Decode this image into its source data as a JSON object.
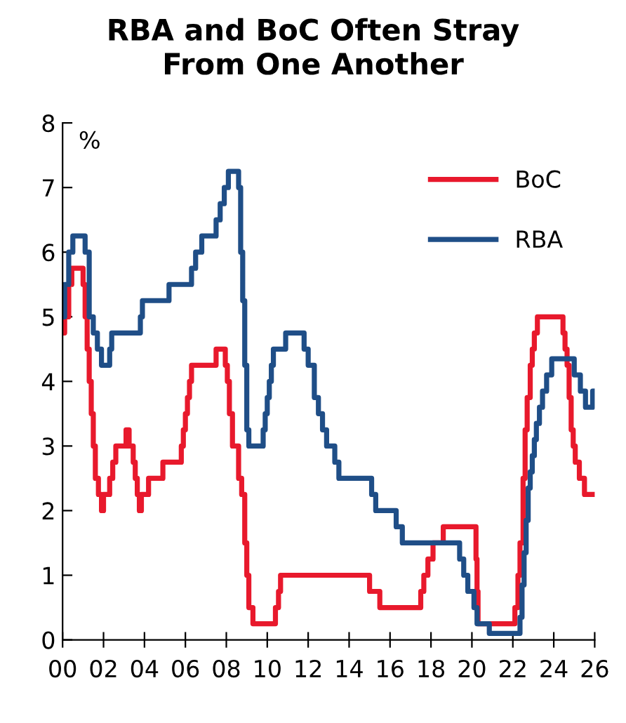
{
  "chart_data": {
    "type": "step",
    "title": "RBA and BoC Often Stray\nFrom One Another",
    "ylabel": "%",
    "xlim": [
      0,
      26
    ],
    "xticks": [
      {
        "value": 0,
        "label": "00"
      },
      {
        "value": 2,
        "label": "02"
      },
      {
        "value": 4,
        "label": "04"
      },
      {
        "value": 6,
        "label": "06"
      },
      {
        "value": 8,
        "label": "08"
      },
      {
        "value": 10,
        "label": "10"
      },
      {
        "value": 12,
        "label": "12"
      },
      {
        "value": 14,
        "label": "14"
      },
      {
        "value": 16,
        "label": "16"
      },
      {
        "value": 18,
        "label": "18"
      },
      {
        "value": 20,
        "label": "20"
      },
      {
        "value": 22,
        "label": "22"
      },
      {
        "value": 24,
        "label": "24"
      },
      {
        "value": 26,
        "label": "26"
      }
    ],
    "ylim": [
      0,
      8
    ],
    "yticks": [
      0,
      1,
      2,
      3,
      4,
      5,
      6,
      7,
      8
    ],
    "grid": false,
    "legend": "top right",
    "line_style": "solid",
    "marker": "none",
    "series": [
      {
        "name": "BoC",
        "color": "#e8192c",
        "x": [
          0,
          0.1,
          0.3,
          0.45,
          1.0,
          1.1,
          1.2,
          1.3,
          1.4,
          1.5,
          1.6,
          1.75,
          1.9,
          2.0,
          2.3,
          2.45,
          2.6,
          3.1,
          3.25,
          3.45,
          3.55,
          3.65,
          3.75,
          3.85,
          4.2,
          4.6,
          4.9,
          5.8,
          5.9,
          6.0,
          6.1,
          6.2,
          6.3,
          6.4,
          7.5,
          7.95,
          8.05,
          8.15,
          8.3,
          8.6,
          8.75,
          8.9,
          9.0,
          9.1,
          9.3,
          10.4,
          10.55,
          10.65,
          10.8,
          15.0,
          15.5,
          17.5,
          17.65,
          17.85,
          18.1,
          18.6,
          18.8,
          20.2,
          20.25,
          20.3,
          22.1,
          22.25,
          22.35,
          22.5,
          22.6,
          22.7,
          22.85,
          22.95,
          23.05,
          23.2,
          23.7,
          24.45,
          24.55,
          24.65,
          24.75,
          24.85,
          24.95,
          25.05,
          25.25,
          25.5,
          25.7,
          26.0
        ],
        "values": [
          4.75,
          5.0,
          5.5,
          5.75,
          5.5,
          5.0,
          4.5,
          4.0,
          3.5,
          3.0,
          2.5,
          2.25,
          2.0,
          2.25,
          2.5,
          2.75,
          3.0,
          3.25,
          3.0,
          2.75,
          2.5,
          2.25,
          2.0,
          2.25,
          2.5,
          2.5,
          2.75,
          3.0,
          3.25,
          3.5,
          3.75,
          4.0,
          4.25,
          4.25,
          4.5,
          4.25,
          4.0,
          3.5,
          3.0,
          2.5,
          2.25,
          1.5,
          1.0,
          0.5,
          0.25,
          0.5,
          0.75,
          1.0,
          1.0,
          0.75,
          0.5,
          0.75,
          1.0,
          1.25,
          1.5,
          1.75,
          1.75,
          1.25,
          0.75,
          0.25,
          0.5,
          1.0,
          1.5,
          2.5,
          3.25,
          3.75,
          4.25,
          4.5,
          4.75,
          5.0,
          5.0,
          4.75,
          4.5,
          4.25,
          3.75,
          3.25,
          3.0,
          2.75,
          2.5,
          2.25,
          2.25,
          2.25
        ]
      },
      {
        "name": "RBA",
        "color": "#1f4e87",
        "x": [
          0,
          0.1,
          0.3,
          0.5,
          0.7,
          1.1,
          1.3,
          1.5,
          1.7,
          1.9,
          2.3,
          2.4,
          3.8,
          3.9,
          5.2,
          6.3,
          6.5,
          6.8,
          7.5,
          7.7,
          7.9,
          8.1,
          8.6,
          8.7,
          8.8,
          8.9,
          9.0,
          9.1,
          9.8,
          9.9,
          10.0,
          10.1,
          10.2,
          10.3,
          10.9,
          11.8,
          12.0,
          12.3,
          12.5,
          12.7,
          12.9,
          13.3,
          13.5,
          15.1,
          15.3,
          16.3,
          16.6,
          19.4,
          19.6,
          19.8,
          20.1,
          20.25,
          20.85,
          22.35,
          22.45,
          22.55,
          22.65,
          22.75,
          22.85,
          22.95,
          23.05,
          23.15,
          23.3,
          23.45,
          23.65,
          23.9,
          25.0,
          25.3,
          25.55,
          25.9,
          26.0
        ],
        "values": [
          5.0,
          5.5,
          6.0,
          6.25,
          6.25,
          6.0,
          5.0,
          4.75,
          4.5,
          4.25,
          4.5,
          4.75,
          5.0,
          5.25,
          5.5,
          5.75,
          6.0,
          6.25,
          6.5,
          6.75,
          7.0,
          7.25,
          7.0,
          6.0,
          5.25,
          4.25,
          3.25,
          3.0,
          3.25,
          3.5,
          3.75,
          4.0,
          4.25,
          4.5,
          4.75,
          4.5,
          4.25,
          3.75,
          3.5,
          3.25,
          3.0,
          2.75,
          2.5,
          2.25,
          2.0,
          1.75,
          1.5,
          1.25,
          1.0,
          0.75,
          0.5,
          0.25,
          0.1,
          0.35,
          0.85,
          1.35,
          1.85,
          2.35,
          2.6,
          2.85,
          3.1,
          3.35,
          3.6,
          3.85,
          4.1,
          4.35,
          4.1,
          3.85,
          3.6,
          3.85,
          3.85
        ]
      }
    ]
  }
}
